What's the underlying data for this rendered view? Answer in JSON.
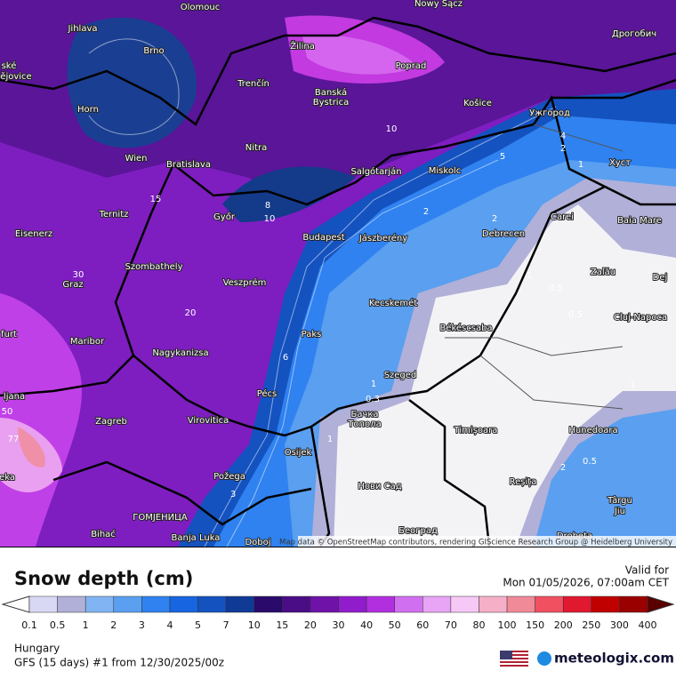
{
  "map": {
    "places": [
      "Olomouc",
      "Nowy Sącz",
      "Jihlava",
      "Brno",
      "Žilina",
      "Poprad",
      "Дрогобич",
      "ské",
      "ějovice",
      "Trenčín",
      "Banská",
      "Bystrica",
      "Košice",
      "Ужгород",
      "Horn",
      "Nitra",
      "Wien",
      "Bratislava",
      "Salgótarján",
      "Miskolc",
      "Хуст",
      "Ternitz",
      "Győr",
      "Carei",
      "Baia Mare",
      "Eisenerz",
      "Budapest",
      "Jászberény",
      "Debrecen",
      "Szombathely",
      "Zalău",
      "Dej",
      "Graz",
      "Veszprém",
      "Kecskemét",
      "Cluj-Napoca",
      "Békéscsaba",
      "furt",
      "Maribor",
      "Paks",
      "Nagykanizsa",
      "Szeged",
      "ljana",
      "Pécs",
      "Бачка",
      "Топола",
      "Zagreb",
      "Virovitica",
      "Timișoara",
      "Hunedoara",
      "Osijek",
      "eka",
      "Požega",
      "Нови Сад",
      "Reșița",
      "Târgu",
      "Jiu",
      "ГОМЈЕНИЦА",
      "Bihać",
      "Banja Luka",
      "Doboj",
      "Београд",
      "Drobeta"
    ],
    "contour_labels": [
      "2",
      "2",
      "1",
      "0.5",
      "0.5",
      "1",
      "2",
      "4",
      "8",
      "10",
      "15",
      "20",
      "6",
      "3",
      "1",
      "0.3",
      "1",
      "2",
      "0.5",
      "1",
      "50",
      "77",
      "30",
      "10",
      "5"
    ],
    "attribution": "Map data © OpenStreetMap contributors, rendering GIScience Research Group @ Heidelberg University"
  },
  "legend": {
    "title": "Snow depth (cm)",
    "levels": [
      0.1,
      0.5,
      1,
      2,
      3,
      4,
      5,
      7,
      10,
      15,
      20,
      30,
      40,
      50,
      60,
      70,
      80,
      100,
      150,
      200,
      250,
      300,
      400
    ],
    "colors": [
      "#d8d8f5",
      "#b0b0d8",
      "#80b4f2",
      "#5a9ff0",
      "#2f82f0",
      "#1765e0",
      "#1452c0",
      "#0f3a96",
      "#2a0a6a",
      "#4a0d85",
      "#6e12a8",
      "#901ccc",
      "#b22fe0",
      "#d070f0",
      "#e8a4f5",
      "#f5c8f5",
      "#f5b0c8",
      "#f08a98",
      "#f05060",
      "#e01830",
      "#c00000",
      "#9a0000"
    ]
  },
  "footer": {
    "valid_label": "Valid for",
    "valid_time": "Mon 01/05/2026, 07:00am CET",
    "region": "Hungary",
    "model": "GFS (15 days) #1 from  12/30/2025/00z",
    "brand": "meteologix.com"
  }
}
